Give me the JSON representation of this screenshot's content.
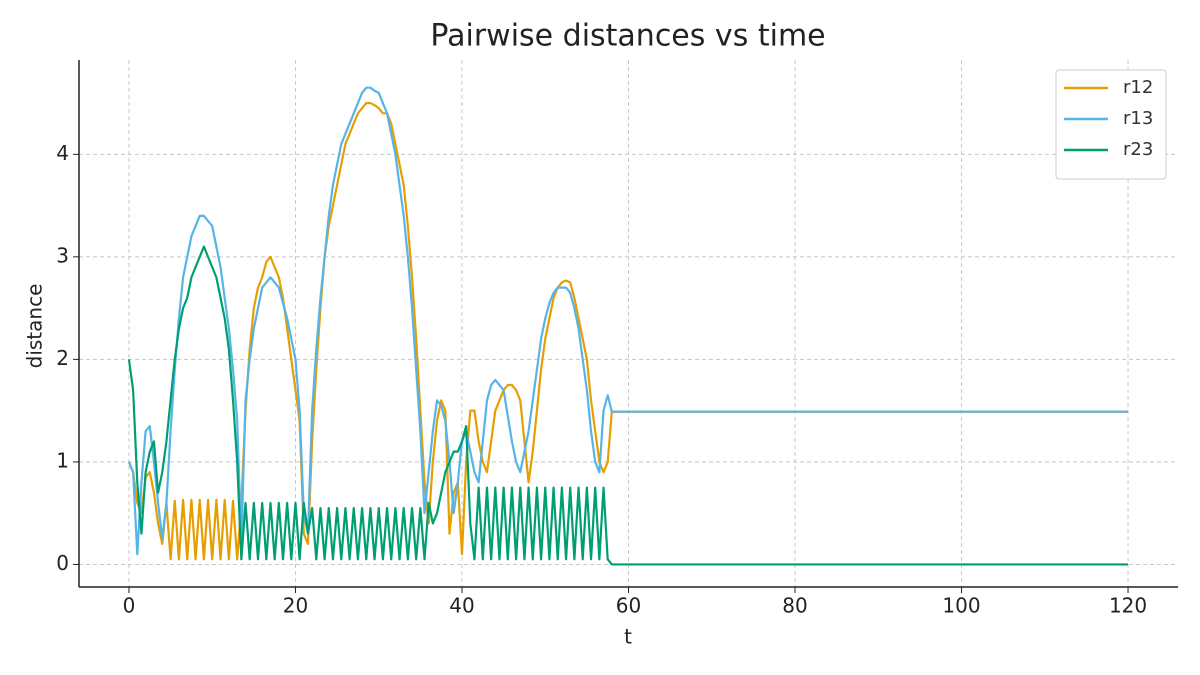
{
  "chart_data": {
    "type": "line",
    "title": "Pairwise distances vs time",
    "x_label": "t",
    "y_label": "distance",
    "x": [
      0,
      0.5,
      1,
      1.5,
      2,
      2.5,
      3,
      3.5,
      4,
      4.5,
      5,
      5.5,
      6,
      6.5,
      7,
      7.5,
      8,
      8.5,
      9,
      9.5,
      10,
      10.5,
      11,
      11.5,
      12,
      12.5,
      13,
      13.5,
      14,
      14.5,
      15,
      15.5,
      16,
      16.5,
      17,
      17.5,
      18,
      18.5,
      19,
      19.5,
      20,
      20.5,
      21,
      21.5,
      22,
      22.5,
      23,
      23.5,
      24,
      24.5,
      25,
      25.5,
      26,
      26.5,
      27,
      27.5,
      28,
      28.5,
      29,
      29.5,
      30,
      30.5,
      31,
      31.5,
      32,
      32.5,
      33,
      33.5,
      34,
      34.5,
      35,
      35.5,
      36,
      36.5,
      37,
      37.5,
      38,
      38.5,
      39,
      39.5,
      40,
      40.5,
      41,
      41.5,
      42,
      42.5,
      43,
      43.5,
      44,
      44.5,
      45,
      45.5,
      46,
      46.5,
      47,
      47.5,
      48,
      48.5,
      49,
      49.5,
      50,
      50.5,
      51,
      51.5,
      52,
      52.5,
      53,
      53.5,
      54,
      54.5,
      55,
      55.5,
      56,
      56.5,
      57,
      57.5,
      58,
      120
    ],
    "series": [
      {
        "name": "r12",
        "color": "#E69F00",
        "values": [
          1.0,
          0.9,
          0.6,
          0.5,
          0.85,
          0.9,
          0.7,
          0.4,
          0.2,
          0.6,
          0.05,
          0.62,
          0.05,
          0.63,
          0.05,
          0.63,
          0.05,
          0.63,
          0.05,
          0.63,
          0.05,
          0.63,
          0.05,
          0.63,
          0.05,
          0.62,
          0.05,
          0.6,
          1.5,
          2.1,
          2.5,
          2.7,
          2.8,
          2.95,
          3.0,
          2.9,
          2.8,
          2.6,
          2.3,
          2.0,
          1.7,
          1.4,
          0.3,
          0.2,
          1.2,
          1.9,
          2.5,
          3.0,
          3.3,
          3.5,
          3.7,
          3.9,
          4.1,
          4.2,
          4.3,
          4.4,
          4.45,
          4.5,
          4.5,
          4.48,
          4.45,
          4.4,
          4.4,
          4.3,
          4.1,
          3.9,
          3.7,
          3.3,
          2.8,
          2.2,
          1.5,
          0.8,
          0.4,
          1.0,
          1.4,
          1.6,
          1.5,
          0.3,
          0.7,
          0.8,
          0.1,
          1.0,
          1.5,
          1.5,
          1.2,
          1.0,
          0.9,
          1.2,
          1.5,
          1.6,
          1.7,
          1.75,
          1.75,
          1.7,
          1.6,
          1.2,
          0.8,
          1.1,
          1.5,
          1.9,
          2.2,
          2.4,
          2.6,
          2.7,
          2.75,
          2.77,
          2.75,
          2.6,
          2.4,
          2.2,
          2.0,
          1.6,
          1.3,
          1.0,
          0.9,
          1.0,
          1.49,
          1.49
        ]
      },
      {
        "name": "r13",
        "color": "#56B4E9",
        "values": [
          1.0,
          0.9,
          0.1,
          0.8,
          1.3,
          1.35,
          1.0,
          0.6,
          0.25,
          0.6,
          1.3,
          1.9,
          2.4,
          2.8,
          3.0,
          3.2,
          3.3,
          3.4,
          3.4,
          3.35,
          3.3,
          3.1,
          2.9,
          2.6,
          2.3,
          1.9,
          1.4,
          0.2,
          1.6,
          2.0,
          2.3,
          2.5,
          2.7,
          2.75,
          2.8,
          2.75,
          2.7,
          2.55,
          2.4,
          2.2,
          2.0,
          1.5,
          0.5,
          0.3,
          1.5,
          2.1,
          2.6,
          3.0,
          3.4,
          3.7,
          3.9,
          4.1,
          4.2,
          4.3,
          4.4,
          4.5,
          4.6,
          4.65,
          4.65,
          4.62,
          4.6,
          4.5,
          4.4,
          4.2,
          4.0,
          3.7,
          3.4,
          3.0,
          2.5,
          1.9,
          1.3,
          0.5,
          0.9,
          1.3,
          1.6,
          1.55,
          1.4,
          1.0,
          0.5,
          0.8,
          1.2,
          1.3,
          1.1,
          0.9,
          0.8,
          1.2,
          1.6,
          1.75,
          1.8,
          1.75,
          1.7,
          1.45,
          1.2,
          1.0,
          0.9,
          1.1,
          1.3,
          1.6,
          1.9,
          2.2,
          2.4,
          2.55,
          2.65,
          2.7,
          2.7,
          2.7,
          2.65,
          2.5,
          2.3,
          2.0,
          1.7,
          1.3,
          1.0,
          0.9,
          1.5,
          1.65,
          1.49,
          1.49
        ]
      },
      {
        "name": "r23",
        "color": "#009E73",
        "values": [
          2.0,
          1.7,
          0.8,
          0.3,
          0.9,
          1.1,
          1.2,
          0.7,
          0.9,
          1.2,
          1.6,
          2.0,
          2.3,
          2.5,
          2.6,
          2.8,
          2.9,
          3.0,
          3.1,
          3.0,
          2.9,
          2.8,
          2.6,
          2.4,
          2.1,
          1.6,
          1.0,
          0.05,
          0.6,
          0.05,
          0.6,
          0.05,
          0.6,
          0.05,
          0.6,
          0.05,
          0.6,
          0.05,
          0.6,
          0.05,
          0.6,
          0.05,
          0.6,
          0.3,
          0.55,
          0.05,
          0.55,
          0.05,
          0.55,
          0.05,
          0.55,
          0.05,
          0.55,
          0.05,
          0.55,
          0.05,
          0.55,
          0.05,
          0.55,
          0.05,
          0.55,
          0.05,
          0.55,
          0.05,
          0.55,
          0.05,
          0.55,
          0.05,
          0.55,
          0.05,
          0.55,
          0.05,
          0.6,
          0.4,
          0.5,
          0.7,
          0.9,
          1.0,
          1.1,
          1.1,
          1.2,
          1.35,
          0.4,
          0.05,
          0.75,
          0.05,
          0.75,
          0.05,
          0.75,
          0.05,
          0.75,
          0.05,
          0.75,
          0.05,
          0.75,
          0.05,
          0.75,
          0.05,
          0.75,
          0.05,
          0.75,
          0.05,
          0.75,
          0.05,
          0.75,
          0.05,
          0.75,
          0.05,
          0.75,
          0.05,
          0.75,
          0.05,
          0.75,
          0.05,
          0.75,
          0.05,
          0,
          0
        ]
      }
    ],
    "xlim": [
      -6,
      126
    ],
    "ylim": [
      -0.22,
      4.92
    ],
    "xticks": [
      0,
      20,
      40,
      60,
      80,
      100,
      120
    ],
    "yticks": [
      0,
      1,
      2,
      3,
      4
    ],
    "grid": true,
    "legend": "upper right"
  }
}
